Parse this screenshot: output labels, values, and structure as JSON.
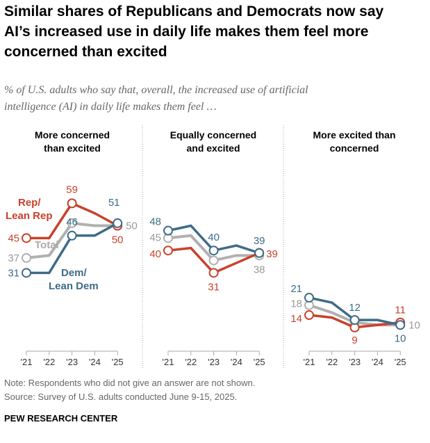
{
  "title": "Similar shares of Republicans and Democrats now say AI’s increased use in daily life makes them feel more concerned than excited",
  "subtitle": "% of U.S. adults who say that, overall, the increased use of artificial intelligence (AI) in daily life makes them feel …",
  "note": "Note: Respondents who did not give an answer are not shown.",
  "source": "Source: Survey of U.S. adults conducted June 9-15, 2025.",
  "brand": "PEW RESEARCH CENTER",
  "series_labels": {
    "rep": "Rep/ Lean Rep",
    "dem": "Dem/ Lean Dem",
    "total": "Total"
  },
  "colors": {
    "rep": "#c8412b",
    "dem": "#3e6b88",
    "total": "#b0b0b0"
  },
  "chart_data": [
    {
      "type": "line",
      "title": "More concerned than excited",
      "categories": [
        "'21",
        "'22",
        "'23",
        "'24",
        "'25"
      ],
      "ylim": [
        0,
        60
      ],
      "series": [
        {
          "name": "Rep/ Lean Rep",
          "key": "rep",
          "values": [
            45,
            45,
            59,
            55,
            50
          ]
        },
        {
          "name": "Total",
          "key": "total",
          "values": [
            37,
            38,
            51,
            50,
            50
          ]
        },
        {
          "name": "Dem/ Lean Dem",
          "key": "dem",
          "values": [
            31,
            31,
            46,
            46,
            51
          ]
        }
      ]
    },
    {
      "type": "line",
      "title": "Equally concerned and excited",
      "categories": [
        "'21",
        "'22",
        "'23",
        "'24",
        "'25"
      ],
      "ylim": [
        0,
        60
      ],
      "series": [
        {
          "name": "Rep/ Lean Rep",
          "key": "rep",
          "values": [
            40,
            41,
            31,
            35,
            39
          ]
        },
        {
          "name": "Total",
          "key": "total",
          "values": [
            45,
            46,
            36,
            38,
            38
          ]
        },
        {
          "name": "Dem/ Lean Dem",
          "key": "dem",
          "values": [
            48,
            50,
            40,
            42,
            39
          ]
        }
      ]
    },
    {
      "type": "line",
      "title": "More excited than concerned",
      "categories": [
        "'21",
        "'22",
        "'23",
        "'24",
        "'25"
      ],
      "ylim": [
        0,
        60
      ],
      "series": [
        {
          "name": "Rep/ Lean Rep",
          "key": "rep",
          "values": [
            14,
            13,
            9,
            10,
            11
          ]
        },
        {
          "name": "Total",
          "key": "total",
          "values": [
            18,
            15,
            11,
            10,
            10
          ]
        },
        {
          "name": "Dem/ Lean Dem",
          "key": "dem",
          "values": [
            21,
            19,
            12,
            12,
            10
          ]
        }
      ]
    }
  ]
}
